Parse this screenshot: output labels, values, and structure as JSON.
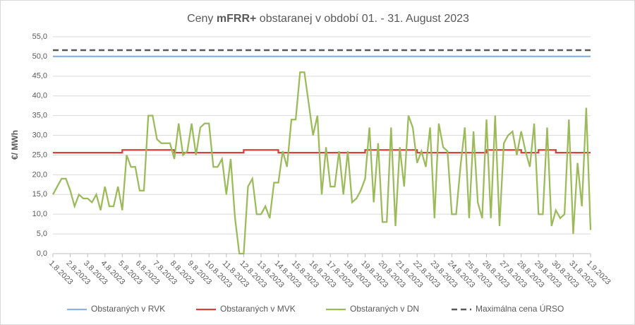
{
  "chart_data": {
    "type": "line",
    "title": {
      "prefix": "Ceny",
      "bold": "mFRR+",
      "suffix": "obstaranej v období 01. - 31. August 2023"
    },
    "y_label": "€/ MWh",
    "xlim": [
      0,
      31
    ],
    "xticks": [
      {
        "value": 0,
        "label": "1.8.2023"
      },
      {
        "value": 1,
        "label": "2.8.2023"
      },
      {
        "value": 2,
        "label": "3.8.2023"
      },
      {
        "value": 3,
        "label": "4.8.2023"
      },
      {
        "value": 4,
        "label": "5.8.2023"
      },
      {
        "value": 5,
        "label": "6.8.2023"
      },
      {
        "value": 6,
        "label": "7.8.2023"
      },
      {
        "value": 7,
        "label": "8.8.2023"
      },
      {
        "value": 8,
        "label": "9.8.2023"
      },
      {
        "value": 9,
        "label": "10.8.2023"
      },
      {
        "value": 10,
        "label": "11.8.2023"
      },
      {
        "value": 11,
        "label": "12.8.2023"
      },
      {
        "value": 12,
        "label": "13.8.2023"
      },
      {
        "value": 13,
        "label": "14.8.2023"
      },
      {
        "value": 14,
        "label": "15.8.2023"
      },
      {
        "value": 15,
        "label": "16.8.2023"
      },
      {
        "value": 16,
        "label": "17.8.2023"
      },
      {
        "value": 17,
        "label": "18.8.2023"
      },
      {
        "value": 18,
        "label": "19.8.2023"
      },
      {
        "value": 19,
        "label": "20.8.2023"
      },
      {
        "value": 20,
        "label": "21.8.2023"
      },
      {
        "value": 21,
        "label": "22.8.2023"
      },
      {
        "value": 22,
        "label": "23.8.2023"
      },
      {
        "value": 23,
        "label": "24.8.2023"
      },
      {
        "value": 24,
        "label": "25.8.2023"
      },
      {
        "value": 25,
        "label": "26.8.2023"
      },
      {
        "value": 26,
        "label": "27.8.2023"
      },
      {
        "value": 27,
        "label": "28.8.2023"
      },
      {
        "value": 28,
        "label": "29.8.2023"
      },
      {
        "value": 29,
        "label": "30.8.2023"
      },
      {
        "value": 30,
        "label": "31.8.2023"
      },
      {
        "value": 31,
        "label": "1.9.2023"
      }
    ],
    "ylim": [
      0,
      55
    ],
    "yticks": [
      {
        "value": 0,
        "label": "0,0"
      },
      {
        "value": 5,
        "label": "5,0"
      },
      {
        "value": 10,
        "label": "10,0"
      },
      {
        "value": 15,
        "label": "15,0"
      },
      {
        "value": 20,
        "label": "20,0"
      },
      {
        "value": 25,
        "label": "25,0"
      },
      {
        "value": 30,
        "label": "30,0"
      },
      {
        "value": 35,
        "label": "35,0"
      },
      {
        "value": 40,
        "label": "40,0"
      },
      {
        "value": 45,
        "label": "45,0"
      },
      {
        "value": 50,
        "label": "50,0"
      },
      {
        "value": 55,
        "label": "55,0"
      }
    ],
    "grid": true,
    "legend": "bottom",
    "series": [
      {
        "name": "Obstaraných v RVK",
        "color": "#8db3e2",
        "dash": false,
        "x": [
          0,
          31
        ],
        "values": [
          50,
          50
        ]
      },
      {
        "name": "Obstaraných v MVK",
        "color": "#d9403a",
        "dash": false,
        "x": [
          0,
          4,
          4,
          7,
          7,
          11,
          11,
          13,
          13,
          18,
          18,
          21,
          21,
          25,
          25,
          27,
          27,
          28,
          28,
          29,
          29,
          31
        ],
        "values": [
          25.6,
          25.6,
          26.3,
          26.3,
          25.6,
          25.6,
          26.3,
          26.3,
          25.6,
          25.6,
          26.3,
          26.3,
          25.6,
          25.6,
          26.3,
          26.3,
          25.6,
          25.6,
          26.3,
          26.3,
          25.6,
          25.6
        ]
      },
      {
        "name": "Obstaraných v DN",
        "color": "#9bbb59",
        "dash": false,
        "x": [
          0,
          0.25,
          0.5,
          0.75,
          1,
          1.25,
          1.5,
          1.75,
          2,
          2.25,
          2.5,
          2.75,
          3,
          3.25,
          3.5,
          3.75,
          4,
          4.25,
          4.5,
          4.75,
          5,
          5.25,
          5.5,
          5.75,
          6,
          6.25,
          6.5,
          6.75,
          7,
          7.25,
          7.5,
          7.75,
          8,
          8.25,
          8.5,
          8.75,
          9,
          9.25,
          9.5,
          9.75,
          10,
          10.25,
          10.5,
          10.75,
          11,
          11.25,
          11.5,
          11.75,
          12,
          12.25,
          12.5,
          12.75,
          13,
          13.25,
          13.5,
          13.75,
          14,
          14.25,
          14.5,
          14.75,
          15,
          15.25,
          15.5,
          15.75,
          16,
          16.25,
          16.5,
          16.75,
          17,
          17.25,
          17.5,
          17.75,
          18,
          18.25,
          18.5,
          18.75,
          19,
          19.25,
          19.5,
          19.75,
          20,
          20.25,
          20.5,
          20.75,
          21,
          21.25,
          21.5,
          21.75,
          22,
          22.25,
          22.5,
          22.75,
          23,
          23.25,
          23.5,
          23.75,
          24,
          24.25,
          24.5,
          24.75,
          25,
          25.25,
          25.5,
          25.75,
          26,
          26.25,
          26.5,
          26.75,
          27,
          27.25,
          27.5,
          27.75,
          28,
          28.25,
          28.5,
          28.75,
          29,
          29.25,
          29.5,
          29.75,
          30,
          30.25,
          30.5,
          30.75,
          31
        ],
        "values": [
          15,
          17,
          19,
          19,
          16,
          12,
          15,
          14,
          14,
          13,
          15,
          11,
          17,
          12,
          12,
          17,
          11,
          25,
          22,
          22,
          16,
          16,
          35,
          35,
          29,
          28,
          28,
          28,
          24,
          33,
          25,
          26,
          33,
          25,
          32,
          33,
          33,
          22,
          22,
          24,
          15,
          24,
          9,
          0,
          0,
          17,
          19,
          10,
          10,
          12,
          9,
          18,
          18,
          26,
          22,
          34,
          34,
          46,
          46,
          38,
          30,
          35,
          15,
          27,
          17,
          17,
          26,
          15,
          26,
          13,
          14,
          16,
          19,
          32,
          13,
          28,
          8,
          8,
          32,
          7,
          27,
          17,
          35,
          32,
          23,
          26,
          22,
          32,
          9,
          33,
          27,
          26,
          10,
          10,
          22,
          32,
          9,
          31,
          13,
          9,
          34,
          9,
          35,
          7,
          28,
          30,
          31,
          25,
          31,
          26,
          22,
          33,
          10,
          10,
          32,
          7,
          11,
          9,
          10,
          34,
          5,
          23,
          12,
          37,
          6
        ]
      },
      {
        "name": "Maximálna cena ÚRSO",
        "color": "#595959",
        "dash": true,
        "x": [
          0,
          31
        ],
        "values": [
          51.6,
          51.6
        ]
      }
    ]
  }
}
